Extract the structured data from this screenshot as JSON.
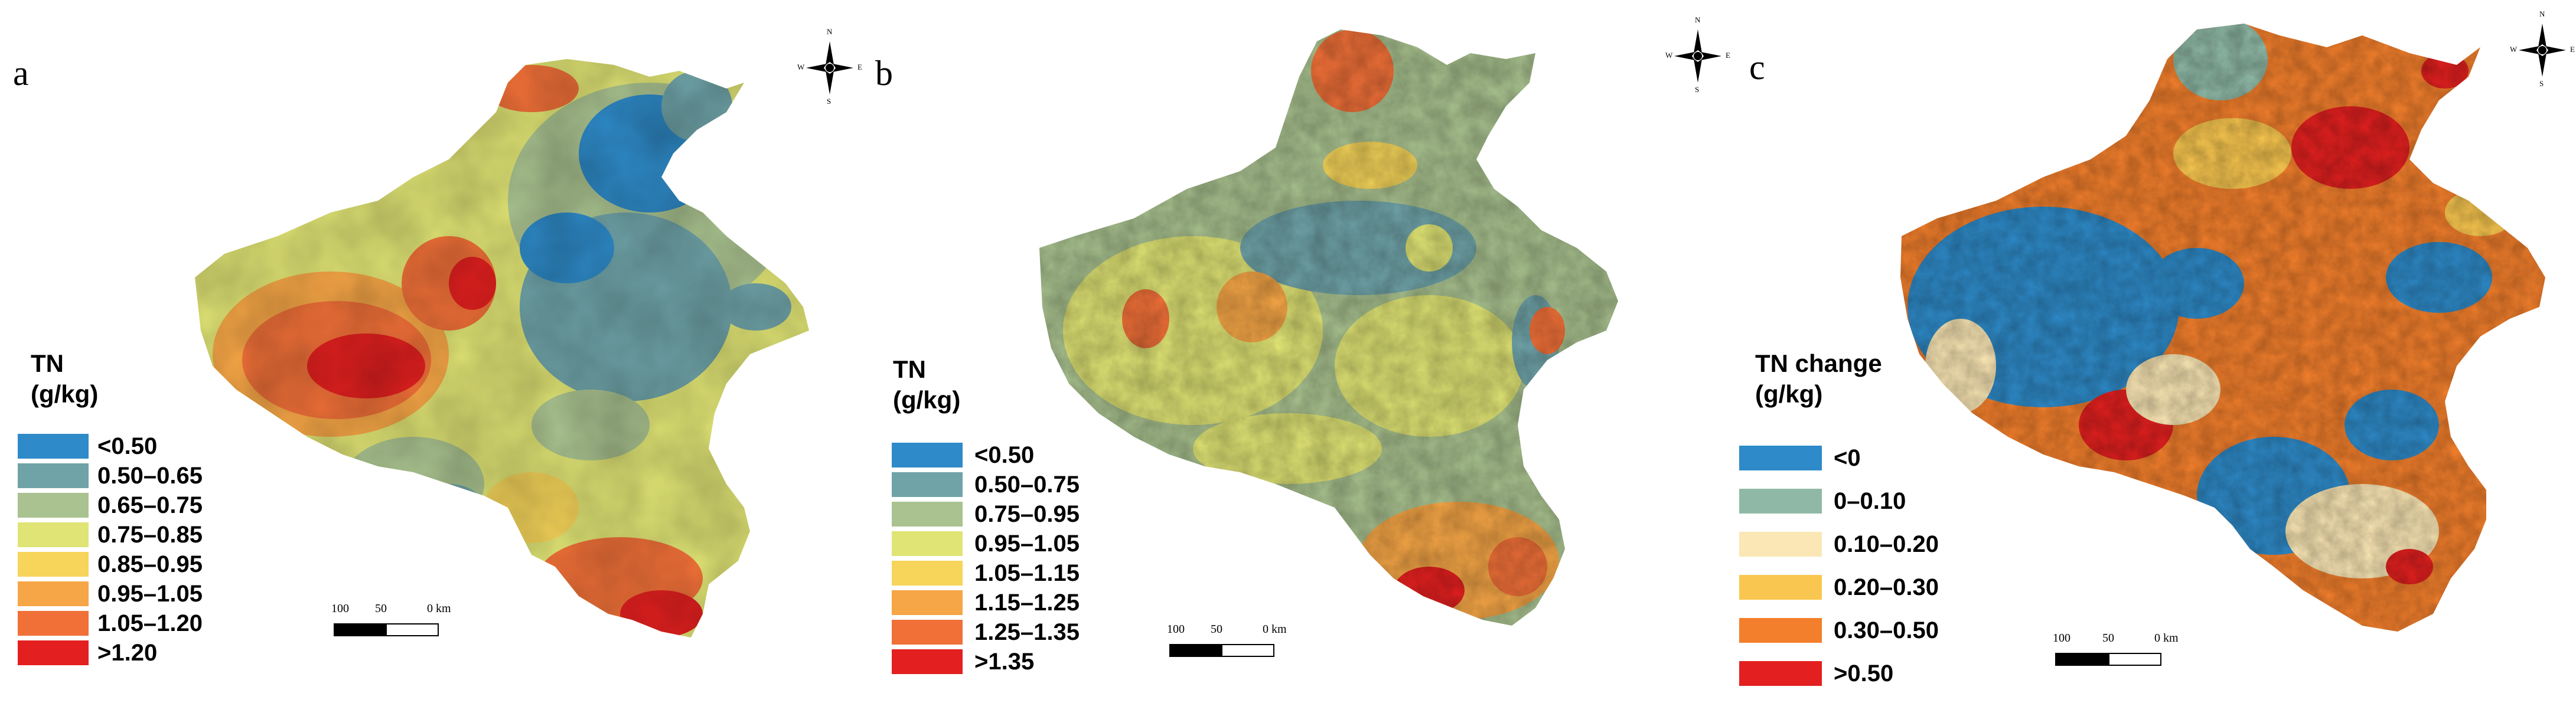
{
  "panels": [
    {
      "letter": "a",
      "legend_title": "TN\n(g/kg)",
      "classes": [
        {
          "label": "<0.50",
          "color": "#2e8ac8"
        },
        {
          "label": "0.50–0.65",
          "color": "#6fa3a8"
        },
        {
          "label": "0.65–0.75",
          "color": "#a9c28f"
        },
        {
          "label": "0.75–0.85",
          "color": "#e0e474"
        },
        {
          "label": "0.85–0.95",
          "color": "#f6d55a"
        },
        {
          "label": "0.95–1.05",
          "color": "#f6a646"
        },
        {
          "label": "1.05–1.20",
          "color": "#f07038"
        },
        {
          "label": ">1.20",
          "color": "#e3201f"
        }
      ],
      "scale": {
        "t100": "100",
        "t50": "50",
        "t0": "0 km"
      },
      "compass": {
        "n": "N",
        "s": "S",
        "e": "E",
        "w": "W"
      }
    },
    {
      "letter": "b",
      "legend_title": "TN\n(g/kg)",
      "classes": [
        {
          "label": "<0.50",
          "color": "#2e8ac8"
        },
        {
          "label": "0.50–0.75",
          "color": "#6fa3a8"
        },
        {
          "label": "0.75–0.95",
          "color": "#a9c28f"
        },
        {
          "label": "0.95–1.05",
          "color": "#e0e474"
        },
        {
          "label": "1.05–1.15",
          "color": "#f6d55a"
        },
        {
          "label": "1.15–1.25",
          "color": "#f6a646"
        },
        {
          "label": "1.25–1.35",
          "color": "#f07038"
        },
        {
          "label": ">1.35",
          "color": "#e3201f"
        }
      ],
      "scale": {
        "t100": "100",
        "t50": "50",
        "t0": "0 km"
      },
      "compass": {
        "n": "N",
        "s": "S",
        "e": "E",
        "w": "W"
      }
    },
    {
      "letter": "c",
      "legend_title": "TN change\n(g/kg)",
      "classes": [
        {
          "label": "<0",
          "color": "#2e8ac8"
        },
        {
          "label": "0–0.10",
          "color": "#8fb9a6"
        },
        {
          "label": "0.10–0.20",
          "color": "#fbe7b5"
        },
        {
          "label": "0.20–0.30",
          "color": "#f9c74f"
        },
        {
          "label": "0.30–0.50",
          "color": "#f37f2c"
        },
        {
          "label": ">0.50",
          "color": "#e3201f"
        }
      ],
      "scale": {
        "t100": "100",
        "t50": "50",
        "t0": "0 km"
      },
      "compass": {
        "n": "N",
        "s": "S",
        "e": "E",
        "w": "W"
      }
    }
  ]
}
